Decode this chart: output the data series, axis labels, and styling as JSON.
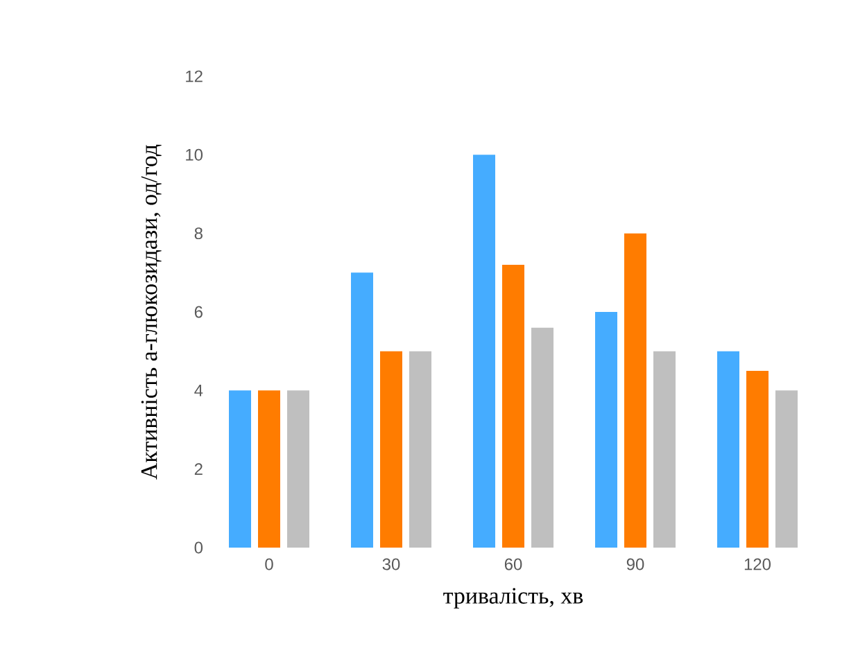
{
  "chart_data": {
    "type": "bar",
    "xlabel": "тривалість, хв",
    "ylabel": "Активність а-глюкозидази, од/год",
    "categories": [
      "0",
      "30",
      "60",
      "90",
      "120"
    ],
    "series": [
      {
        "color": "#45acff",
        "values": [
          4,
          7,
          10,
          6,
          5
        ]
      },
      {
        "color": "#ff7c00",
        "values": [
          4,
          5,
          7.2,
          8,
          4.5
        ]
      },
      {
        "color": "#bfbfbf",
        "values": [
          4,
          5,
          5.6,
          5,
          4
        ]
      }
    ],
    "ylim": [
      0,
      12
    ],
    "yticks": [
      0,
      2,
      4,
      6,
      8,
      10,
      12
    ]
  }
}
